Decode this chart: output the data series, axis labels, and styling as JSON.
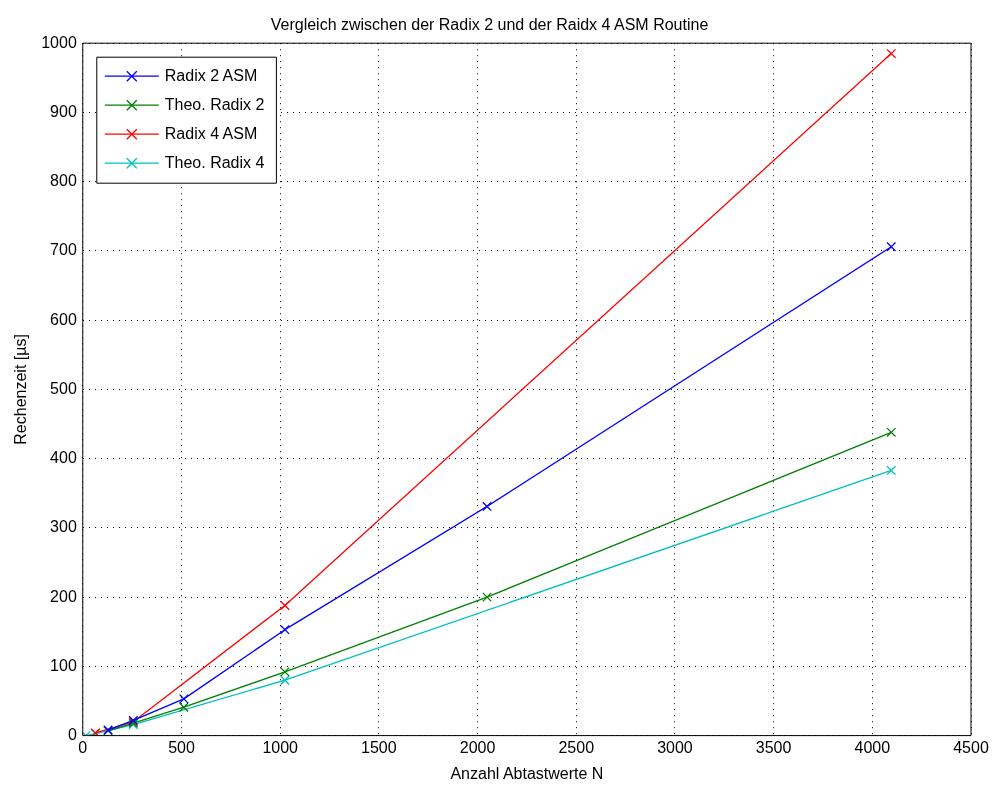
{
  "chart_data": {
    "type": "line",
    "title": "Vergleich zwischen der Radix 2 und der Raidx 4 ASM Routine",
    "xlabel": "Anzahl Abtastwerte N",
    "ylabel": "Rechenzeit [µs]",
    "xlim": [
      0,
      4500
    ],
    "xticks": [
      0,
      500,
      1000,
      1500,
      2000,
      2500,
      3000,
      3500,
      4000,
      4500
    ],
    "ylim": [
      0,
      1000
    ],
    "yticks": [
      0,
      100,
      200,
      300,
      400,
      500,
      600,
      700,
      800,
      900,
      1000
    ],
    "grid": true,
    "legend": "top left",
    "marker": "cross",
    "line_style": "solid",
    "series": [
      {
        "name": "Radix 2 ASM",
        "color": "#0000ff",
        "x": [
          128,
          256,
          512,
          1024,
          2048,
          4096
        ],
        "values": [
          8,
          22,
          53,
          153,
          331,
          706
        ]
      },
      {
        "name": "Theo. Radix 2",
        "color": "#008000",
        "x": [
          128,
          256,
          512,
          1024,
          2048,
          4096
        ],
        "values": [
          7,
          18,
          41,
          92,
          200,
          438
        ]
      },
      {
        "name": "Radix 4 ASM",
        "color": "#ff0000",
        "x": [
          64,
          256,
          1024,
          4096
        ],
        "values": [
          4,
          20,
          188,
          985
        ]
      },
      {
        "name": "Theo. Radix 4",
        "color": "#00bfbf",
        "x": [
          16,
          64,
          256,
          1024,
          4096
        ],
        "values": [
          0,
          3,
          16,
          80,
          383
        ]
      }
    ]
  }
}
